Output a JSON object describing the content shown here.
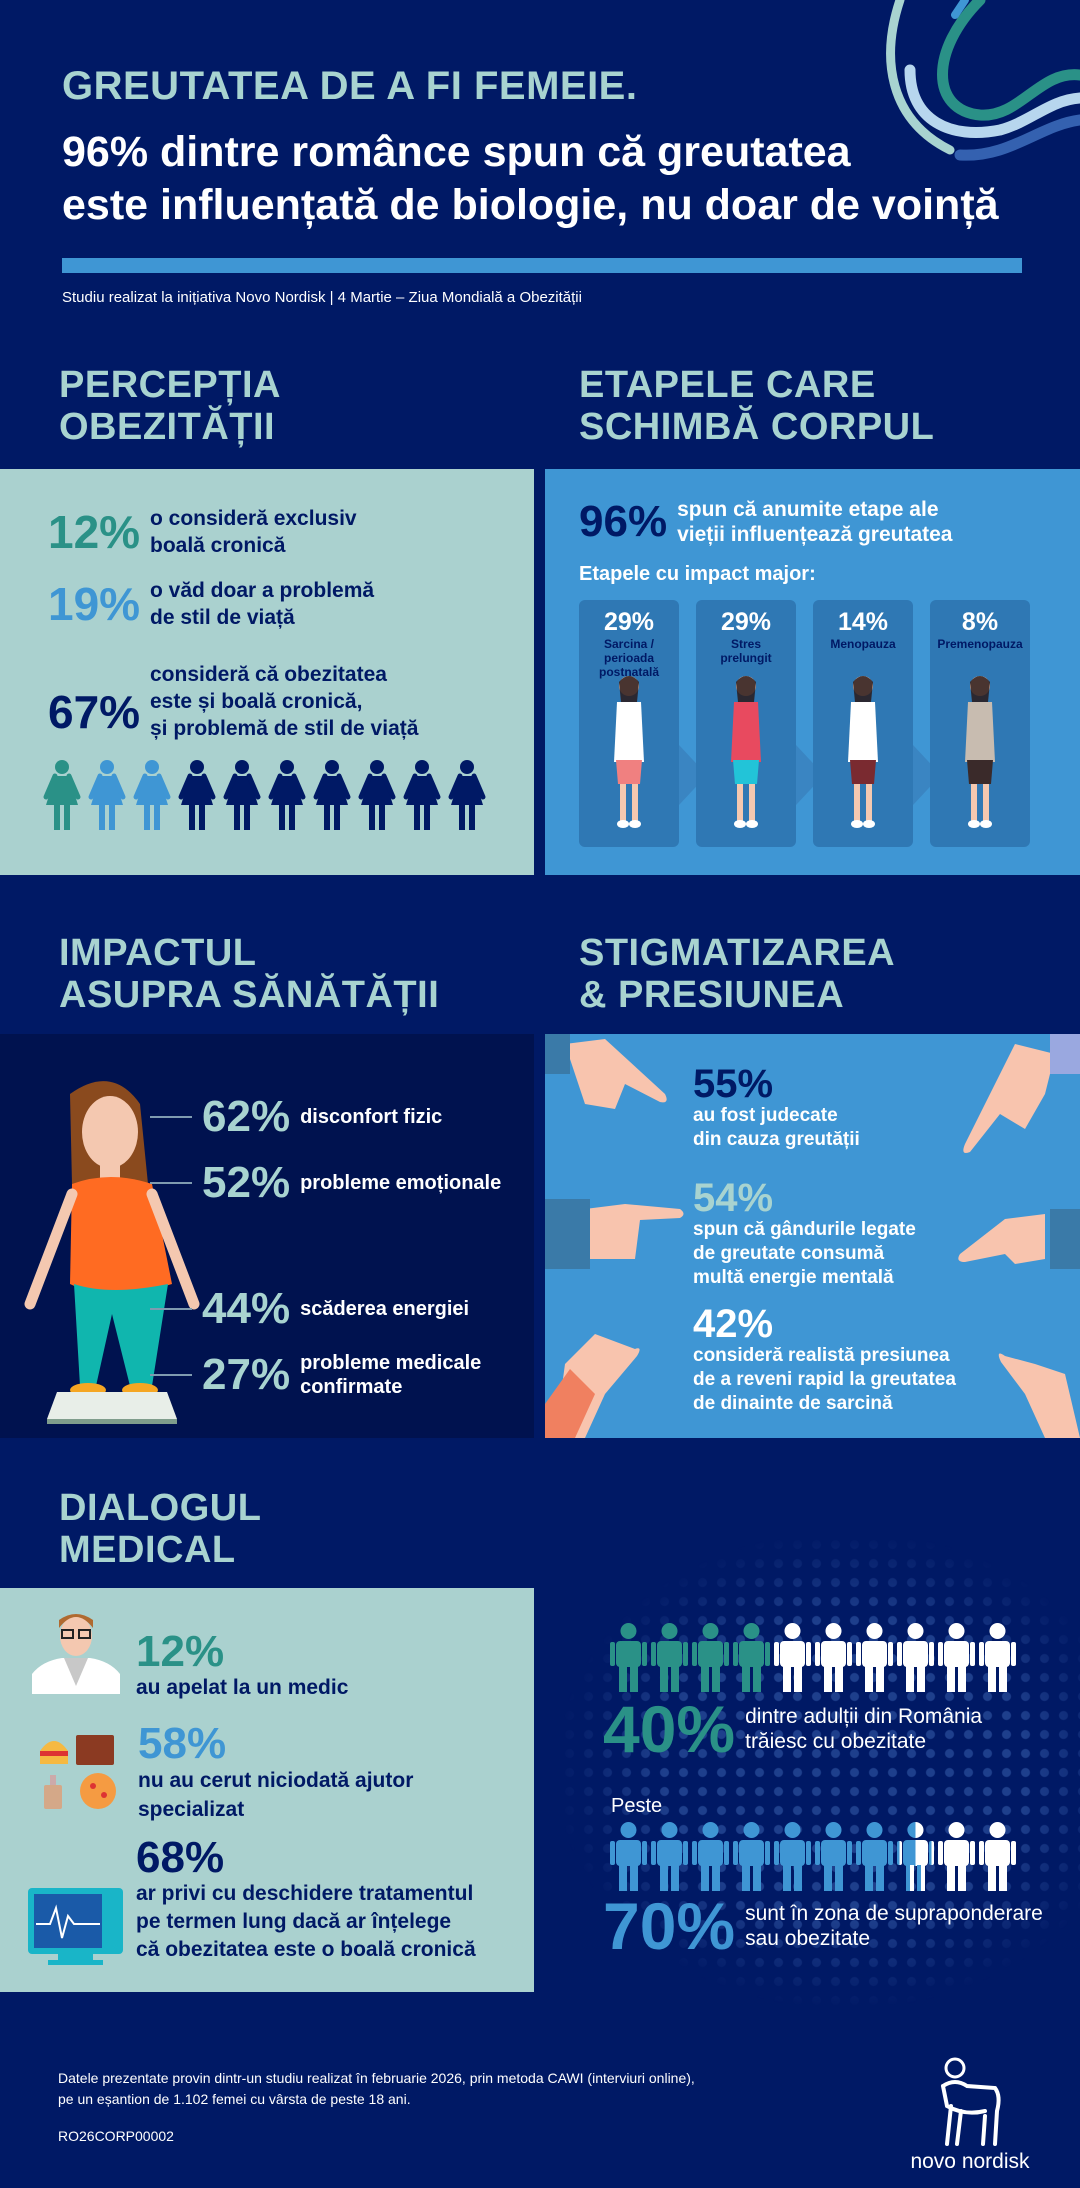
{
  "header": {
    "title": "GREUTATEA DE A FI FEMEIE.",
    "subtitle_line1": "96% dintre românce spun că greutatea",
    "subtitle_line2": "este influențată de biologie, nu doar de voință",
    "study_note": "Studiu realizat la inițiativa Novo Nordisk | 4 Martie – Ziua Mondială a Obezității"
  },
  "colors": {
    "navy": "#001965",
    "teal_light": "#a8d3d0",
    "teal": "#2a9187",
    "blue": "#3f96d4",
    "panel_light": "#aad1cf"
  },
  "perception": {
    "heading_line1": "PERCEPȚIA",
    "heading_line2": "OBEZITĂȚII",
    "items": [
      {
        "value": "12%",
        "line1": "o consideră exclusiv",
        "line2": "boală cronică",
        "color": "#2a9187"
      },
      {
        "value": "19%",
        "line1": "o văd doar a problemă",
        "line2": "de stil de viață",
        "color": "#3f96d4"
      },
      {
        "value": "67%",
        "line1": "consideră că obezitatea",
        "line2": "este și boală cronică,",
        "line3": "și problemă de stil de viață",
        "color": "#001965"
      }
    ],
    "figure_colors": [
      "#2a9187",
      "#3f96d4",
      "#3f96d4",
      "#001965",
      "#001965",
      "#001965",
      "#001965",
      "#001965",
      "#001965",
      "#001965"
    ]
  },
  "stages": {
    "heading_line1": "ETAPELE CARE",
    "heading_line2": "SCHIMBĂ CORPUL",
    "main_value": "96%",
    "main_line1": "spun că anumite etape ale",
    "main_line2": "vieții influențează greutatea",
    "subheading": "Etapele cu impact major:",
    "cards": [
      {
        "value": "29%",
        "label_lines": [
          "Sarcina /",
          "perioada",
          "postnatală"
        ]
      },
      {
        "value": "29%",
        "label_lines": [
          "Stres",
          "prelungit"
        ]
      },
      {
        "value": "14%",
        "label_lines": [
          "Menopauza"
        ]
      },
      {
        "value": "8%",
        "label_lines": [
          "Premenopauza"
        ]
      }
    ]
  },
  "health": {
    "heading_line1": "IMPACTUL",
    "heading_line2": "ASUPRA SĂNĂTĂȚII",
    "items": [
      {
        "value": "62%",
        "line1": "disconfort fizic"
      },
      {
        "value": "52%",
        "line1": "probleme emoționale"
      },
      {
        "value": "44%",
        "line1": "scăderea energiei"
      },
      {
        "value": "27%",
        "line1": "probleme medicale",
        "line2": "confirmate"
      }
    ]
  },
  "stigma": {
    "heading_line1": "STIGMATIZAREA",
    "heading_line2": "& PRESIUNEA",
    "items": [
      {
        "value": "55%",
        "lines": [
          "au fost judecate",
          "din cauza greutății"
        ]
      },
      {
        "value": "54%",
        "lines": [
          "spun că gândurile legate",
          "de greutate consumă",
          "multă energie mentală"
        ]
      },
      {
        "value": "42%",
        "lines": [
          "consideră realistă presiunea",
          "de a reveni rapid la greutatea",
          "de dinainte de sarcină"
        ]
      }
    ]
  },
  "dialog": {
    "heading_line1": "DIALOGUL",
    "heading_line2": "MEDICAL",
    "items": [
      {
        "value": "12%",
        "lines": [
          "au apelat la un medic"
        ],
        "icon": "doctor-icon"
      },
      {
        "value": "58%",
        "lines": [
          "nu au cerut niciodată ajutor",
          "specializat"
        ],
        "icon": "food-icon"
      },
      {
        "value": "68%",
        "lines": [
          "ar privi cu deschidere tratamentul",
          "pe termen lung dacă ar înțelege",
          "că obezitatea este o boală cronică"
        ],
        "icon": "heart-monitor-icon"
      }
    ]
  },
  "romania": {
    "obesity": {
      "value": "40%",
      "line1": "dintre adulții din România",
      "line2": "trăiesc cu obezitate",
      "filled_of_10": 4
    },
    "prefix": "Peste",
    "overweight": {
      "value": "70%",
      "line1": "sunt în zona de supraponderare",
      "line2": "sau obezitate",
      "filled_of_10": 7.5
    }
  },
  "footer": {
    "note_line1": "Datele prezentate provin dintr-un studiu realizat în februarie 2026, prin metoda CAWI (interviuri online),",
    "note_line2": "pe un eșantion de 1.102 femei cu vârsta de peste 18 ani.",
    "code": "RO26CORP00002",
    "logo_text": "novo nordisk"
  }
}
